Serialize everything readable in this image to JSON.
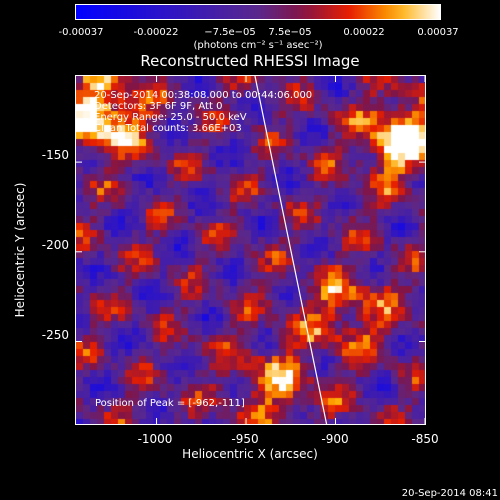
{
  "colorbar": {
    "tick_labels": [
      "-0.00037",
      "-0.00022",
      "−7.5e−05",
      "7.5e−05",
      "0.00022",
      "0.00037"
    ],
    "units": "(photons cm⁻² s⁻¹ asec⁻²)",
    "range": [
      -0.00037,
      0.00037
    ]
  },
  "plot": {
    "title": "Reconstructed RHESSI Image",
    "info_lines": [
      "20-Sep-2014 00:38:08.000 to 00:44:06.000",
      "Detectors: 3F 6F 9F, Att 0",
      "Energy Range: 25.0 - 50.0 keV",
      "Clean    Total counts: 3.66E+03"
    ],
    "peak_text": "Position of Peak = [-962,-111]"
  },
  "axes": {
    "xlabel": "Heliocentric X (arcsec)",
    "ylabel": "Heliocentric Y (arcsec)",
    "xticks": [
      "-1000",
      "-950",
      "-900",
      "-850"
    ],
    "yticks": [
      "-150",
      "-200",
      "-250"
    ]
  },
  "timestamp": "20-Sep-2014 08:41",
  "chart_data": {
    "type": "heatmap",
    "title": "Reconstructed RHESSI Image",
    "xlabel": "Heliocentric X (arcsec)",
    "ylabel": "Heliocentric Y (arcsec)",
    "xlim": [
      -1045,
      -850
    ],
    "ylim": [
      -296,
      -102
    ],
    "xticks": [
      -1000,
      -950,
      -900,
      -850
    ],
    "yticks": [
      -150,
      -200,
      -250
    ],
    "zlim": [
      -0.00037,
      0.00037
    ],
    "colormap": "blue-purple-red-yellow-white",
    "bright_sources": [
      {
        "x": -1032,
        "y": -122
      },
      {
        "x": -866,
        "y": -135
      },
      {
        "x": -895,
        "y": -232
      },
      {
        "x": -935,
        "y": -272
      }
    ],
    "peak_position": [
      -962,
      -111
    ],
    "limb_line": [
      {
        "x": -945,
        "y": -102
      },
      {
        "x": -905,
        "y": -296
      }
    ]
  },
  "colors": {
    "background": "#000000",
    "text": "#ffffff",
    "limb": "#ffffff"
  }
}
